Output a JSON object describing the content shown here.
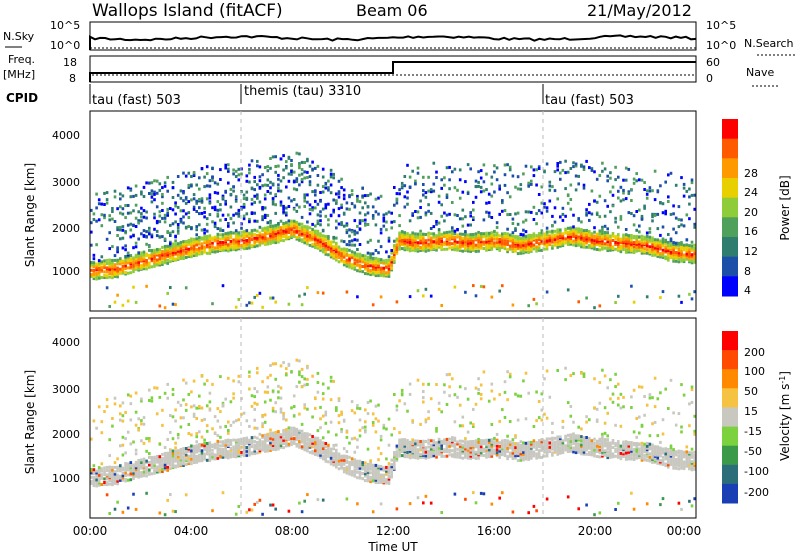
{
  "header": {
    "station": "Wallops Island (fitACF)",
    "beam": "Beam 06",
    "date": "21/May/2012"
  },
  "noise_panel": {
    "left_label": "N.Sky",
    "right_label": "N.Search",
    "left_ticks": [
      "10^5",
      "10^0"
    ],
    "right_ticks": [
      "10^5",
      "10^0"
    ]
  },
  "freq_panel": {
    "left_label": "Freq.",
    "left_unit": "[MHz]",
    "right_label": "Nave",
    "left_ticks": [
      "18",
      "8"
    ],
    "right_ticks": [
      "60",
      "0"
    ]
  },
  "cpid": {
    "label": "CPID",
    "segments": [
      {
        "name": "tau (fast) 503",
        "start_hour": 0
      },
      {
        "name": "themis (tau) 3310",
        "start_hour": 6
      },
      {
        "name": "tau (fast) 503",
        "start_hour": 18
      }
    ]
  },
  "x_axis": {
    "label": "Time UT",
    "tick_labels": [
      "00:00",
      "04:00",
      "08:00",
      "12:00",
      "16:00",
      "20:00",
      "00:00"
    ],
    "range_hours": [
      0,
      24
    ]
  },
  "power_panel": {
    "ylabel": "Slant Range [km]",
    "y_ticks": [
      "4000",
      "3000",
      "2000",
      "1000"
    ],
    "colorbar_label": "Power [dB]",
    "colorbar_ticks": [
      "28",
      "24",
      "20",
      "16",
      "12",
      "8",
      "4"
    ],
    "colors": [
      "#0000ff",
      "#1b4fa8",
      "#2e7d6e",
      "#4fa05a",
      "#8fcc3a",
      "#e8d000",
      "#ff9900",
      "#ff5a00",
      "#ff0000"
    ]
  },
  "velocity_panel": {
    "ylabel": "Slant Range [km]",
    "y_ticks": [
      "4000",
      "3000",
      "2000",
      "1000"
    ],
    "colorbar_label": "Velocity [m s",
    "colorbar_sup": "-1",
    "colorbar_label_end": "]",
    "colorbar_ticks": [
      "200",
      "100",
      "50",
      "15",
      "-15",
      "-50",
      "-100",
      "-200"
    ],
    "colors": [
      "#1a3fb5",
      "#2b6e7a",
      "#3a9a4a",
      "#7cd13f",
      "#c8c8c0",
      "#f5c242",
      "#ff8a00",
      "#ff4a00",
      "#ff0000"
    ]
  },
  "chart_data": {
    "type": "heatmap",
    "x_range_hours": [
      0,
      24
    ],
    "y_range_km": [
      180,
      4500
    ],
    "cpid_change_hours": [
      6,
      18
    ],
    "frequency_step_hour": 12.0,
    "main_echo_band_km": [
      [
        0.0,
        1050
      ],
      [
        1.0,
        1100
      ],
      [
        2.0,
        1250
      ],
      [
        3.0,
        1400
      ],
      [
        4.0,
        1550
      ],
      [
        5.0,
        1650
      ],
      [
        6.0,
        1700
      ],
      [
        7.0,
        1800
      ],
      [
        8.0,
        1950
      ],
      [
        9.0,
        1700
      ],
      [
        10.0,
        1350
      ],
      [
        11.0,
        1150
      ],
      [
        11.8,
        1100
      ],
      [
        12.2,
        1700
      ],
      [
        13.0,
        1650
      ],
      [
        14.0,
        1700
      ],
      [
        15.0,
        1650
      ],
      [
        16.0,
        1700
      ],
      [
        17.0,
        1600
      ],
      [
        18.0,
        1700
      ],
      [
        19.0,
        1800
      ],
      [
        20.0,
        1700
      ],
      [
        21.0,
        1650
      ],
      [
        22.0,
        1600
      ],
      [
        23.0,
        1450
      ],
      [
        24.0,
        1400
      ]
    ]
  }
}
